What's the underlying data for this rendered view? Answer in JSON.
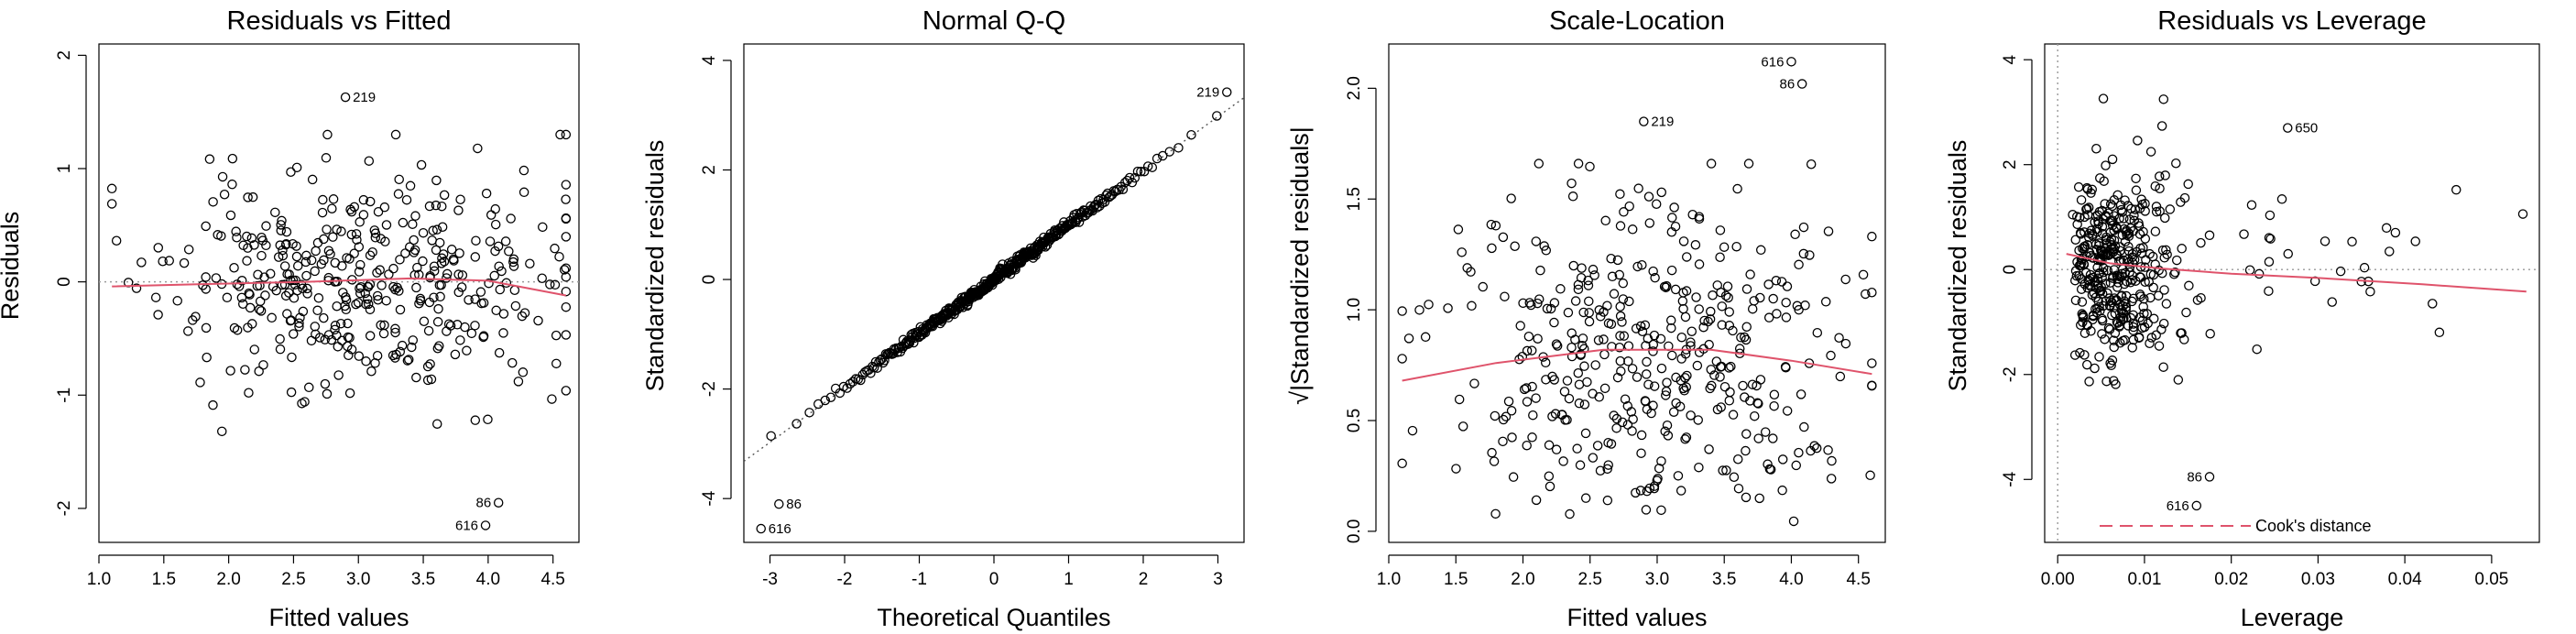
{
  "chart_data": [
    {
      "type": "scatter",
      "title": "Residuals vs Fitted",
      "xlabel": "Fitted values",
      "ylabel": "Residuals",
      "xlim": [
        1.0,
        4.7
      ],
      "ylim": [
        -2.3,
        2.1
      ],
      "xticks": [
        1.0,
        1.5,
        2.0,
        2.5,
        3.0,
        3.5,
        4.0,
        4.5
      ],
      "xtick_labels": [
        "1.0",
        "1.5",
        "2.0",
        "2.5",
        "3.0",
        "3.5",
        "4.0",
        "4.5"
      ],
      "yticks": [
        -2,
        -1,
        0,
        1,
        2
      ],
      "ytick_labels": [
        "-2",
        "-1",
        "0",
        "1",
        "2"
      ],
      "reference_line": {
        "y": 0,
        "style": "dotted",
        "color": "#9a9a9a"
      },
      "smooth": {
        "color": "#df536b",
        "x": [
          1.1,
          1.8,
          2.6,
          3.4,
          4.0,
          4.6
        ],
        "y": [
          -0.04,
          -0.02,
          0.0,
          0.03,
          0.01,
          -0.12
        ]
      },
      "point_cloud": {
        "n": 420,
        "x_range": [
          1.1,
          4.6
        ],
        "x_mean": 3.0,
        "x_sd": 0.75,
        "residual_sd": 0.48,
        "seed": 11
      },
      "labeled_points": [
        {
          "label": "219",
          "x": 2.9,
          "y": 1.63
        },
        {
          "label": "86",
          "x": 4.08,
          "y": -1.95
        },
        {
          "label": "616",
          "x": 3.98,
          "y": -2.15
        }
      ]
    },
    {
      "type": "scatter",
      "title": "Normal Q-Q",
      "xlabel": "Theoretical Quantiles",
      "ylabel": "Standardized residuals",
      "xlim": [
        -3.35,
        3.35
      ],
      "ylim": [
        -4.8,
        4.3
      ],
      "xticks": [
        -3,
        -2,
        -1,
        0,
        1,
        2,
        3
      ],
      "xtick_labels": [
        "-3",
        "-2",
        "-1",
        "0",
        "1",
        "2",
        "3"
      ],
      "yticks": [
        -4,
        -2,
        0,
        2,
        4
      ],
      "ytick_labels": [
        "-4",
        "-2",
        "0",
        "2",
        "4"
      ],
      "reference_line": {
        "x": [
          -3.35,
          3.35
        ],
        "y": [
          -3.32,
          3.32
        ],
        "style": "dotted",
        "color": "#555555"
      },
      "point_cloud": {
        "n": 420,
        "x_range": [
          -2.85,
          2.85
        ],
        "slope": 0.99,
        "jitter_sd": 0.05,
        "seed": 23
      },
      "labeled_points": [
        {
          "label": "219",
          "x": 3.12,
          "y": 3.42
        },
        {
          "label": "86",
          "x": -2.88,
          "y": -4.1
        },
        {
          "label": "616",
          "x": -3.12,
          "y": -4.55
        }
      ]
    },
    {
      "type": "scatter",
      "title": "Scale-Location",
      "xlabel": "Fitted values",
      "ylabel": "√|Standardized residuals|",
      "xlim": [
        1.0,
        4.7
      ],
      "ylim": [
        -0.05,
        2.2
      ],
      "xticks": [
        1.0,
        1.5,
        2.0,
        2.5,
        3.0,
        3.5,
        4.0,
        4.5
      ],
      "xtick_labels": [
        "1.0",
        "1.5",
        "2.0",
        "2.5",
        "3.0",
        "3.5",
        "4.0",
        "4.5"
      ],
      "yticks": [
        0.0,
        0.5,
        1.0,
        1.5,
        2.0
      ],
      "ytick_labels": [
        "0.0",
        "0.5",
        "1.0",
        "1.5",
        "2.0"
      ],
      "smooth": {
        "color": "#df536b",
        "x": [
          1.1,
          1.8,
          2.6,
          3.4,
          4.0,
          4.6
        ],
        "y": [
          0.68,
          0.76,
          0.82,
          0.82,
          0.77,
          0.71
        ]
      },
      "point_cloud": {
        "n": 420,
        "x_range": [
          1.1,
          4.6
        ],
        "x_mean": 3.0,
        "x_sd": 0.75,
        "residual_sd": 0.98,
        "seed": 37
      },
      "labeled_points": [
        {
          "label": "616",
          "x": 4.0,
          "y": 2.12
        },
        {
          "label": "86",
          "x": 4.08,
          "y": 2.02
        },
        {
          "label": "219",
          "x": 2.9,
          "y": 1.85
        }
      ]
    },
    {
      "type": "scatter",
      "title": "Residuals vs Leverage",
      "xlabel": "Leverage",
      "ylabel": "Standardized residuals",
      "xlim": [
        -0.0015,
        0.0555
      ],
      "ylim": [
        -5.2,
        4.3
      ],
      "xticks": [
        0.0,
        0.01,
        0.02,
        0.03,
        0.04,
        0.05
      ],
      "xtick_labels": [
        "0.00",
        "0.01",
        "0.02",
        "0.03",
        "0.04",
        "0.05"
      ],
      "yticks": [
        -4,
        -2,
        0,
        2,
        4
      ],
      "ytick_labels": [
        "-4",
        "-2",
        "0",
        "2",
        "4"
      ],
      "reference_line": {
        "y": 0,
        "style": "dotted",
        "color": "#9a9a9a"
      },
      "vertical_reference": {
        "x": 0,
        "style": "dotted",
        "color": "#9a9a9a"
      },
      "smooth": {
        "color": "#df536b",
        "x": [
          0.001,
          0.006,
          0.012,
          0.02,
          0.03,
          0.042,
          0.054
        ],
        "y": [
          0.3,
          0.12,
          0.02,
          -0.08,
          -0.16,
          -0.28,
          -0.42
        ]
      },
      "point_cloud": {
        "n": 420,
        "lev_min": 0.0015,
        "lev_scale": 0.009,
        "lev_max": 0.054,
        "residual_sd": 1.0,
        "seed": 53
      },
      "labeled_points": [
        {
          "label": "650",
          "x": 0.0265,
          "y": 2.7
        },
        {
          "label": "86",
          "x": 0.0175,
          "y": -3.95
        },
        {
          "label": "616",
          "x": 0.016,
          "y": -4.5
        }
      ],
      "legend": {
        "label": "Cook's distance",
        "color": "#df536b",
        "style": "dashed",
        "position": "bottom-right"
      }
    }
  ]
}
